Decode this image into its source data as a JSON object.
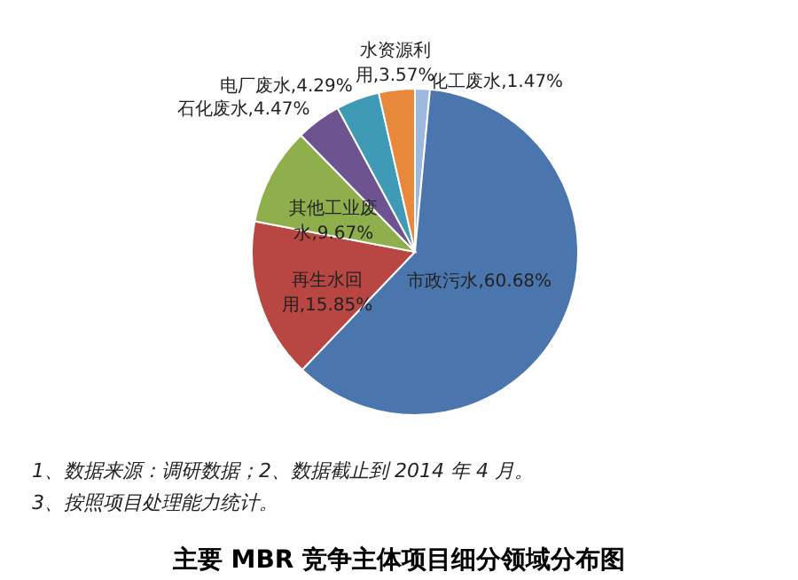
{
  "chart_data": {
    "type": "pie",
    "title": "主要 MBR 竞争主体项目细分领域分布图",
    "categories": [
      "化工废水",
      "市政污水",
      "再生水回用",
      "其他工业废水",
      "石化废水",
      "电厂废水",
      "水资源利用"
    ],
    "values": [
      1.47,
      60.68,
      15.85,
      9.67,
      4.47,
      4.29,
      3.57
    ],
    "colors": [
      "#9db9e0",
      "#4a76ad",
      "#b84642",
      "#8fae4c",
      "#6e5391",
      "#3e9ab5",
      "#e8883a"
    ],
    "value_labels": [
      "1.47%",
      "60.68%",
      "15.85%",
      "9.67%",
      "4.47%",
      "4.29%",
      "3.57%"
    ],
    "annotations": [
      "1、数据来源：调研数据；2、数据截止到 2014 年 4 月。",
      "3、按照项目处理能力统计。"
    ]
  }
}
